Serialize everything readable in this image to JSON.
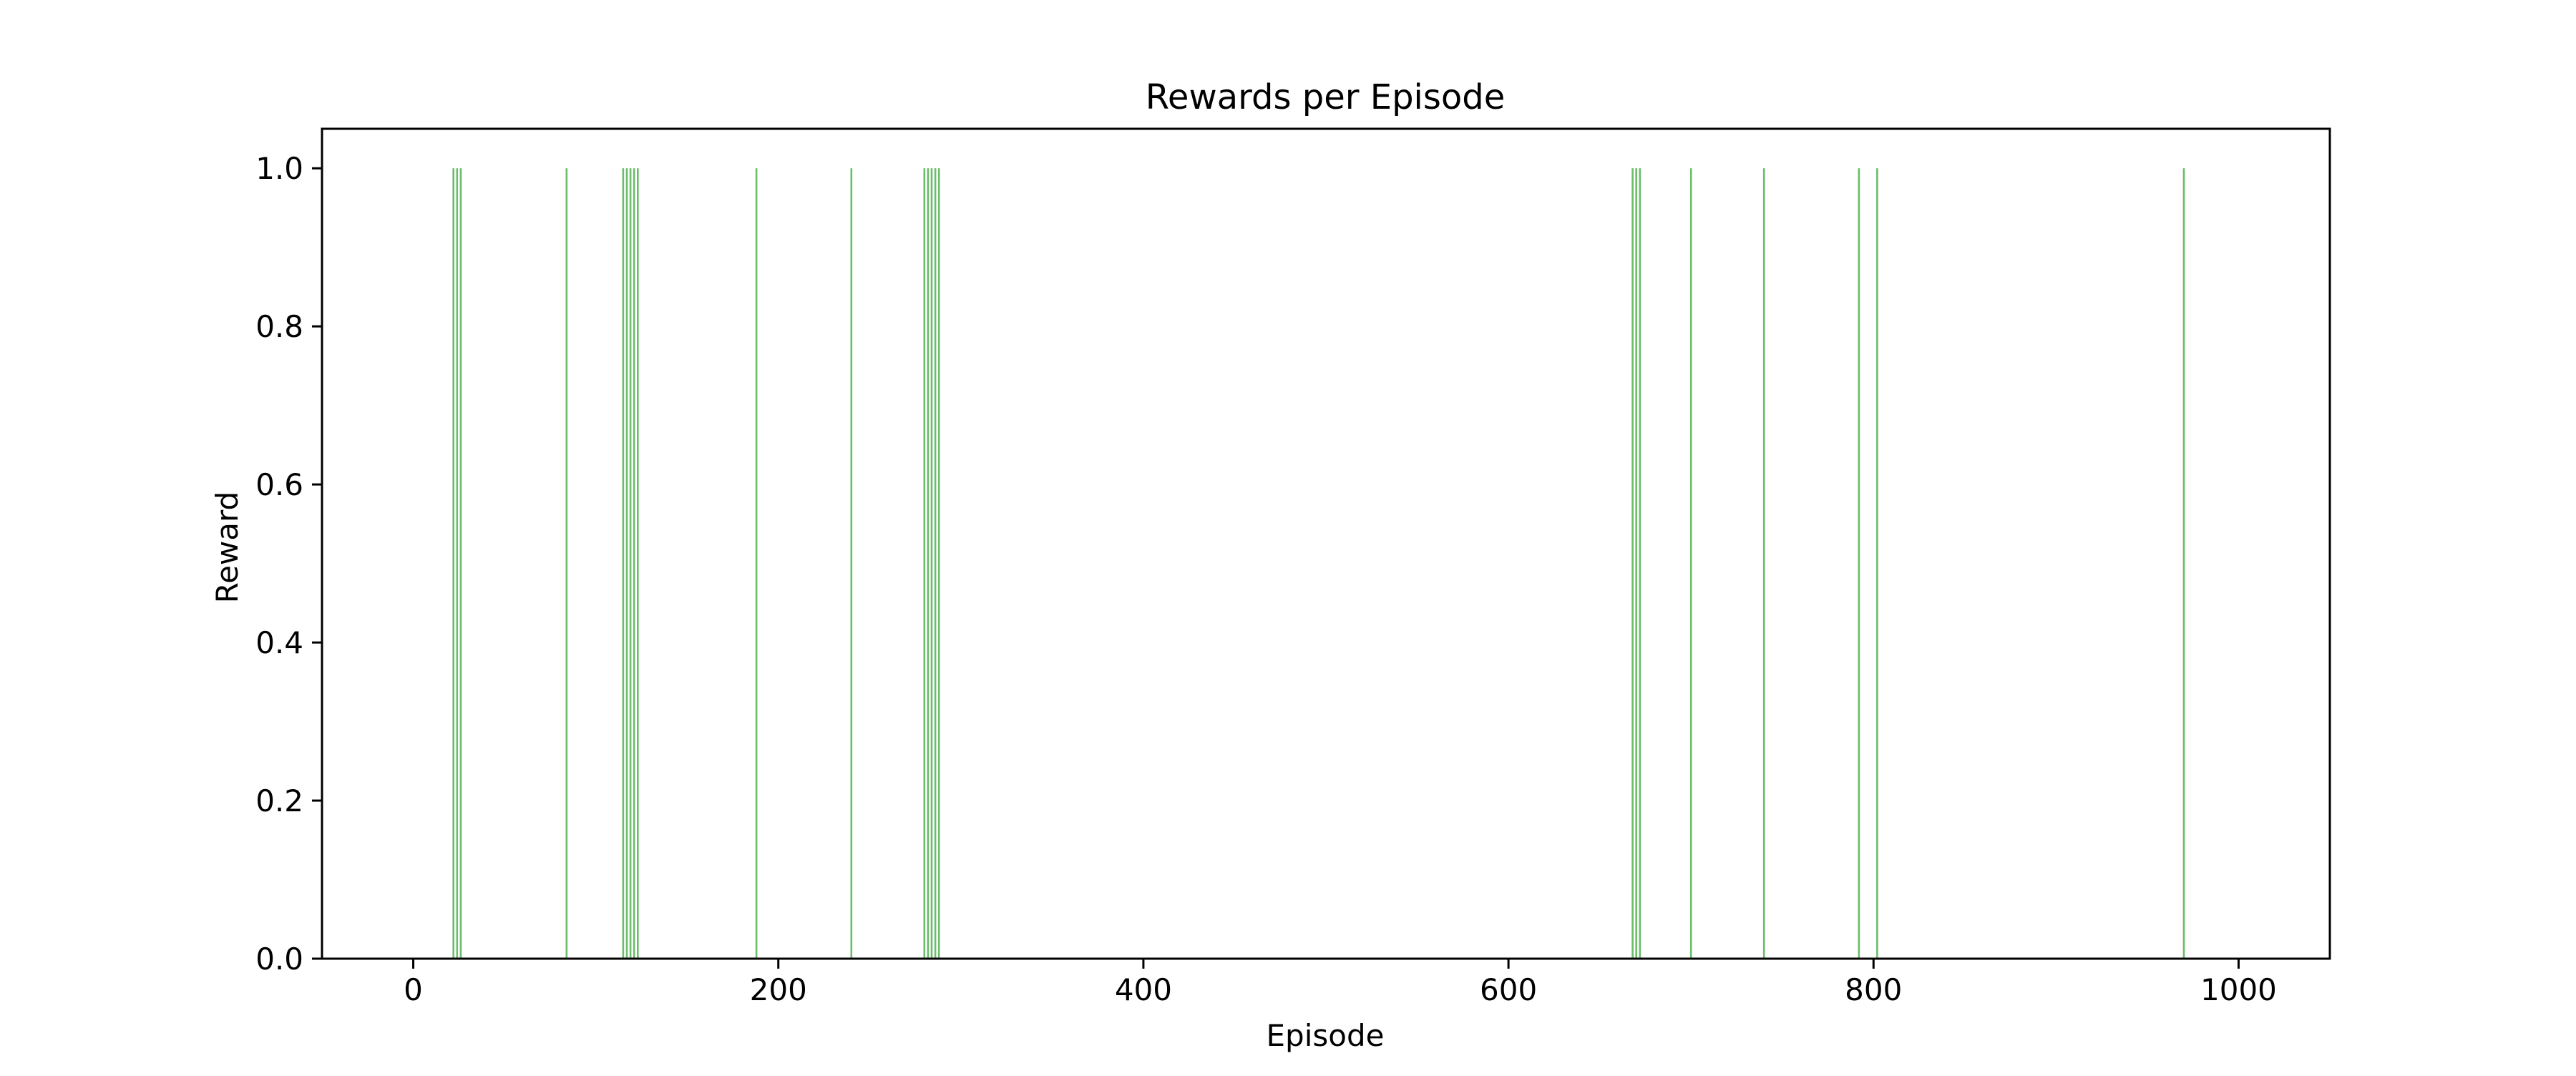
{
  "chart_data": {
    "type": "bar",
    "title": "Rewards per Episode",
    "xlabel": "Episode",
    "ylabel": "Reward",
    "xlim": [
      -50,
      1050
    ],
    "ylim": [
      0,
      1.05
    ],
    "xticks": [
      0,
      200,
      400,
      600,
      800,
      1000
    ],
    "xtick_labels": [
      "0",
      "200",
      "400",
      "600",
      "800",
      "1000"
    ],
    "yticks": [
      0.0,
      0.2,
      0.4,
      0.6,
      0.8,
      1.0
    ],
    "ytick_labels": [
      "0.0",
      "0.2",
      "0.4",
      "0.6",
      "0.8",
      "1.0"
    ],
    "grid": false,
    "bar_color": "#2ca02c",
    "bar_opacity": 0.7,
    "x": [
      22,
      24,
      26,
      84,
      115,
      117,
      119,
      121,
      123,
      188,
      240,
      280,
      282,
      284,
      286,
      288,
      668,
      670,
      672,
      700,
      740,
      792,
      802,
      970
    ],
    "values": [
      1,
      1,
      1,
      1,
      1,
      1,
      1,
      1,
      1,
      1,
      1,
      1,
      1,
      1,
      1,
      1,
      1,
      1,
      1,
      1,
      1,
      1,
      1,
      1
    ]
  }
}
